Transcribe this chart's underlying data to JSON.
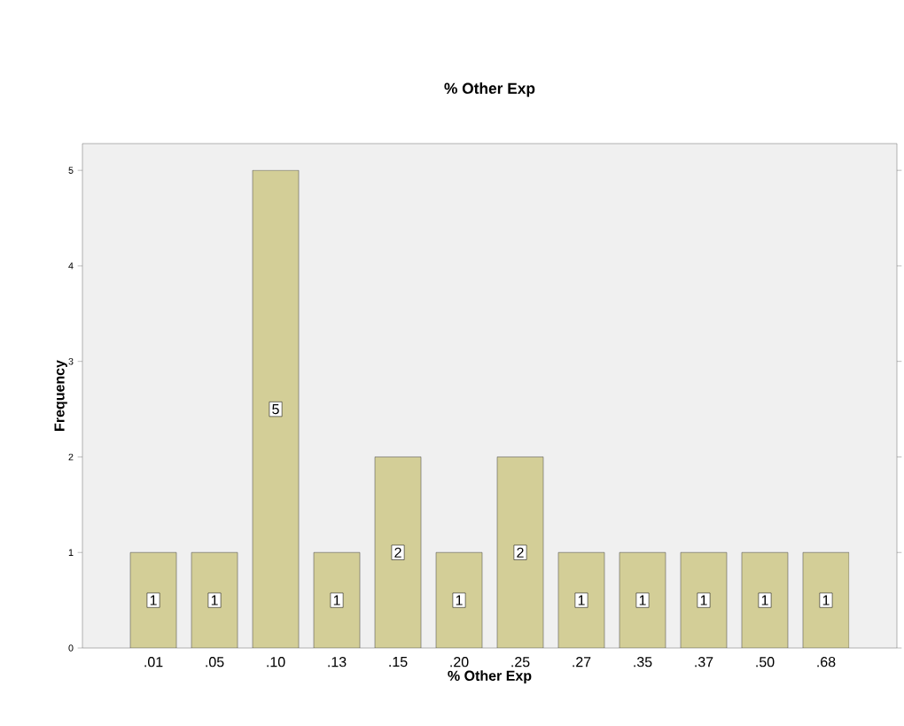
{
  "chart_data": {
    "type": "bar",
    "title": "% Other Exp",
    "xlabel": "% Other Exp",
    "ylabel": "Frequency",
    "categories": [
      ".01",
      ".05",
      ".10",
      ".13",
      ".15",
      ".20",
      ".25",
      ".27",
      ".35",
      ".37",
      ".50",
      ".68"
    ],
    "values": [
      1,
      1,
      5,
      1,
      2,
      1,
      2,
      1,
      1,
      1,
      1,
      1
    ],
    "color": "#d3ce97",
    "ylim": [
      0,
      5.28
    ],
    "yticks": [
      0,
      1,
      2,
      3,
      4,
      5
    ],
    "grid": false,
    "data_labels": true
  }
}
